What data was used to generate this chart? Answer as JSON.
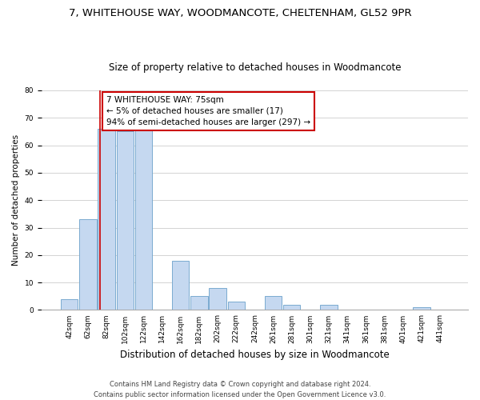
{
  "title": "7, WHITEHOUSE WAY, WOODMANCOTE, CHELTENHAM, GL52 9PR",
  "subtitle": "Size of property relative to detached houses in Woodmancote",
  "xlabel": "Distribution of detached houses by size in Woodmancote",
  "ylabel": "Number of detached properties",
  "bar_labels": [
    "42sqm",
    "62sqm",
    "82sqm",
    "102sqm",
    "122sqm",
    "142sqm",
    "162sqm",
    "182sqm",
    "202sqm",
    "222sqm",
    "242sqm",
    "261sqm",
    "281sqm",
    "301sqm",
    "321sqm",
    "341sqm",
    "361sqm",
    "381sqm",
    "401sqm",
    "421sqm",
    "441sqm"
  ],
  "bar_values": [
    4,
    33,
    66,
    65,
    66,
    0,
    18,
    5,
    8,
    3,
    0,
    5,
    2,
    0,
    2,
    0,
    0,
    0,
    0,
    1,
    0
  ],
  "bar_color": "#c5d8f0",
  "bar_edge_color": "#7aaad0",
  "annotation_text": "7 WHITEHOUSE WAY: 75sqm\n← 5% of detached houses are smaller (17)\n94% of semi-detached houses are larger (297) →",
  "annotation_box_color": "#ffffff",
  "annotation_box_edgecolor": "#cc0000",
  "vline_color": "#cc0000",
  "ylim": [
    0,
    80
  ],
  "yticks": [
    0,
    10,
    20,
    30,
    40,
    50,
    60,
    70,
    80
  ],
  "grid_color": "#cccccc",
  "bg_color": "#ffffff",
  "footnote": "Contains HM Land Registry data © Crown copyright and database right 2024.\nContains public sector information licensed under the Open Government Licence v3.0.",
  "title_fontsize": 9.5,
  "subtitle_fontsize": 8.5,
  "xlabel_fontsize": 8.5,
  "ylabel_fontsize": 7.5,
  "tick_fontsize": 6.5,
  "annotation_fontsize": 7.5,
  "footnote_fontsize": 6.0,
  "vline_x_index": 1.65
}
